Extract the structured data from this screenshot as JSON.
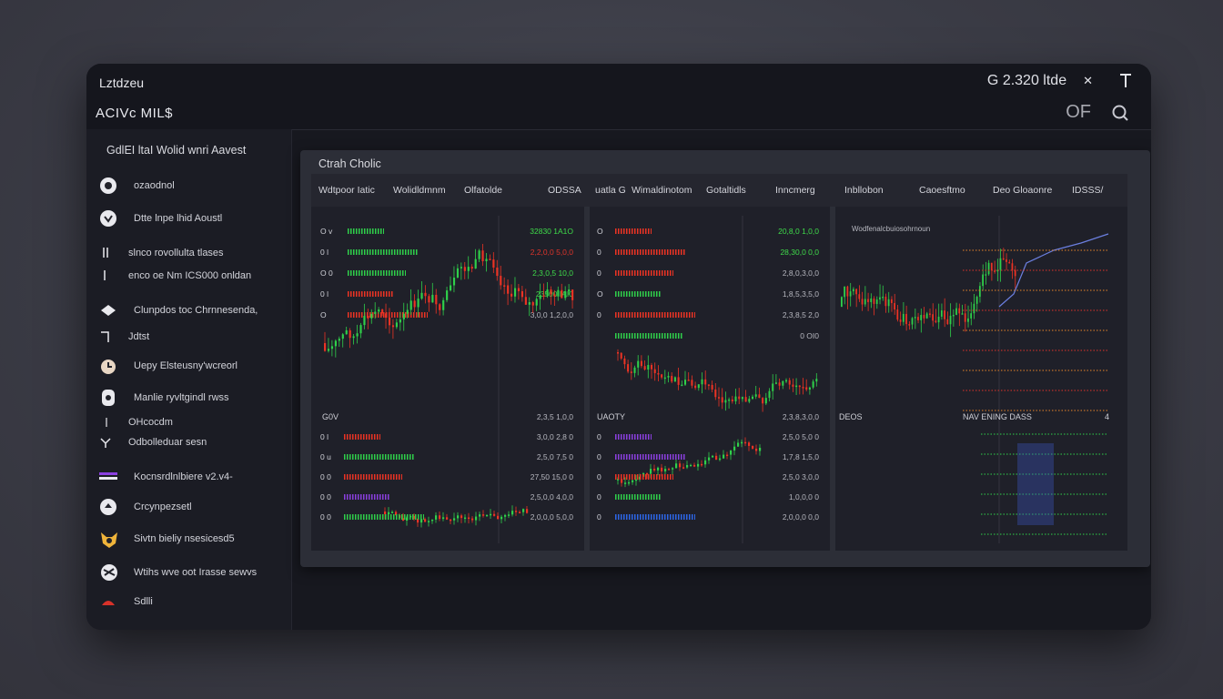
{
  "window": {
    "title": "Lztdzeu",
    "subtitle": "ACIVc MIL$",
    "account": "G 2.320 ltde",
    "close_glyph": "✕",
    "pin_glyph": "⌈",
    "toggle_text": "OF",
    "search_glyph": "⌕"
  },
  "sidebar": {
    "heading": "GdlEI ltaI Wolid wnri Aavest",
    "items": [
      {
        "label": "ozaodnol",
        "icon": "shield-icon"
      },
      {
        "label": "Dtte lnpe lhid Aoustl",
        "icon": "globe-icon"
      },
      {
        "label": "slnco rovollulta tlases",
        "icon": "line-icon"
      },
      {
        "label": "enco oe Nm ICS000 onldan",
        "icon": "line-icon"
      },
      {
        "label": "Clunpdos toc Chrnnesenda,",
        "icon": "hat-icon"
      },
      {
        "label": "Jdtst",
        "icon": "corner-icon"
      },
      {
        "label": "Uepy Elsteusny'wcreorl",
        "icon": "clock-icon"
      },
      {
        "label": "Manlie ryvltgindl rwss",
        "icon": "gauge-icon"
      },
      {
        "label": "OHcocdm",
        "icon": "bar-icon"
      },
      {
        "label": "Odbolleduar sesn",
        "icon": "arrow-icon"
      },
      {
        "label": "Kocnsrdlnlbiere v2.v4-",
        "icon": "stack-icon"
      },
      {
        "label": "Crcynpezsetl",
        "icon": "chat-icon"
      },
      {
        "label": "Sivtn bieliy nsesicesd5",
        "icon": "fox-icon"
      },
      {
        "label": "Wtihs wve oot Irasse sewvs",
        "icon": "rose-icon"
      },
      {
        "label": "Sdlli",
        "icon": "flag-icon"
      }
    ]
  },
  "panel": {
    "title": "Ctrah Cholic",
    "columns": [
      "Wdtpoor Iatic",
      "Wolidldmnm",
      "Olfatolde",
      "ODSSA",
      "uatla G",
      "Wimaldinotom",
      "Gotaltidls",
      "Inncmerg",
      "Inbllobon",
      "Caoesftmo",
      "Deo Gloaonre",
      "IDSSS/"
    ],
    "left_rows": [
      {
        "label": "O v",
        "value": "32830 1A1O",
        "color": "#3fdc4a"
      },
      {
        "label": "0 l",
        "value": "2,2,0,0 5,0,0",
        "color": "#e0342a"
      },
      {
        "label": "O 0",
        "value": "2,3,0,5 10,0",
        "color": "#3fdc4a"
      },
      {
        "label": "0 l",
        "value": "23500 IAI0",
        "color": "#3fdc4a"
      },
      {
        "label": "O",
        "value": "3,0,0 1,2,0,0",
        "color": "#b6b7bf"
      }
    ],
    "left_lower_label": "G0V",
    "left_lower_value": "2,3,5 1,0,0",
    "left_lower": [
      {
        "label": "0 l",
        "value": "3,0,0 2,8 0",
        "color": "#b6b7bf"
      },
      {
        "label": "0 u",
        "value": "2,5,0 7,5 0",
        "color": "#b6b7bf"
      },
      {
        "label": "0 0",
        "value": "27,50 15,0 0",
        "color": "#b6b7bf"
      },
      {
        "label": "0 0",
        "value": "2,5,0,0 4,0,0",
        "color": "#b6b7bf"
      },
      {
        "label": "0 0",
        "value": "2,0,0,0 5,0,0",
        "color": "#b6b7bf"
      }
    ],
    "mid_rows": [
      {
        "label": "O",
        "value": "20,8,0 1,0,0",
        "color": "#3fdc4a"
      },
      {
        "label": "0",
        "value": "28,30,0 0,0",
        "color": "#3fdc4a"
      },
      {
        "label": "0",
        "value": "2,8,0,3,0,0",
        "color": "#b6b7bf"
      },
      {
        "label": "O",
        "value": "1,8,5,3,5,0",
        "color": "#b6b7bf"
      },
      {
        "label": "0",
        "value": "2,3,8,5 2,0",
        "color": "#b6b7bf"
      },
      {
        "label": "",
        "value": "0 OI0",
        "color": "#b6b7bf"
      }
    ],
    "mid_lower_label": "UAOTY",
    "mid_lower_value": "2,3,8,3,0,0",
    "mid_lower": [
      {
        "label": "0",
        "value": "2,5,0 5,0 0",
        "color": "#b6b7bf"
      },
      {
        "label": "0",
        "value": "1,7,8 1,5,0",
        "color": "#b6b7bf"
      },
      {
        "label": "0",
        "value": "2,5,0 3,0,0",
        "color": "#b6b7bf"
      },
      {
        "label": "0",
        "value": "1,0,0,0 0",
        "color": "#b6b7bf"
      },
      {
        "label": "0",
        "value": "2,0,0,0 0,0",
        "color": "#b6b7bf"
      }
    ],
    "right_label_top": "Wodfenalcbuiosohrnoun",
    "right_label_mid": "DEOS",
    "right_label_mid2": "NAV ENING DASS",
    "right_badge": "4"
  },
  "colors": {
    "up": "#2fd04a",
    "down": "#ec3324",
    "purple": "#8b3fe0",
    "blue": "#2d66e8",
    "orange": "#e8842a"
  }
}
